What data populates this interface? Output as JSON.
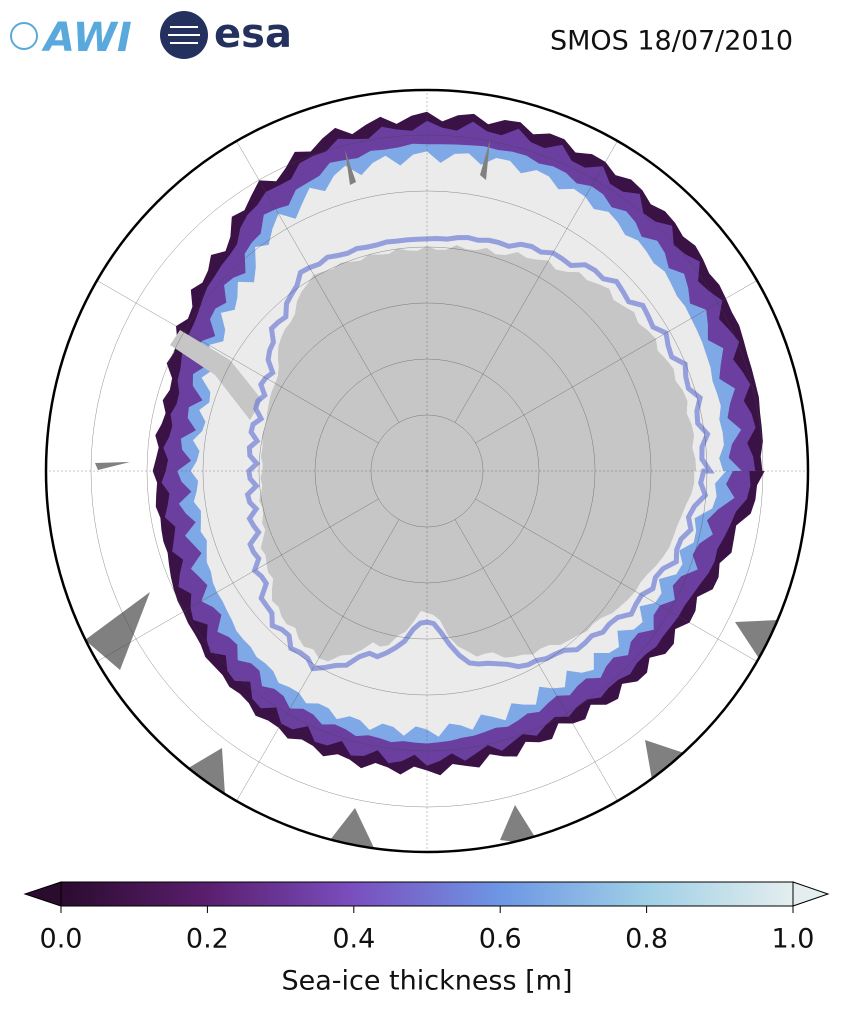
{
  "header": {
    "logos": [
      "AWI",
      "esa"
    ],
    "title": "SMOS 18/07/2010"
  },
  "colorbar": {
    "label": "Sea-ice thickness [m]",
    "lim": [
      0,
      1
    ],
    "ticks": [
      {
        "value": 0,
        "label": "0.0"
      },
      0.2,
      0.4,
      0.6,
      0.8,
      {
        "value": 1,
        "label": "1.0"
      }
    ],
    "colors": [
      "#2b0b2e",
      "#5a1e6e",
      "#7a4fbf",
      "#6d96e4",
      "#9fcfe6",
      "#e4eeee"
    ]
  }
}
